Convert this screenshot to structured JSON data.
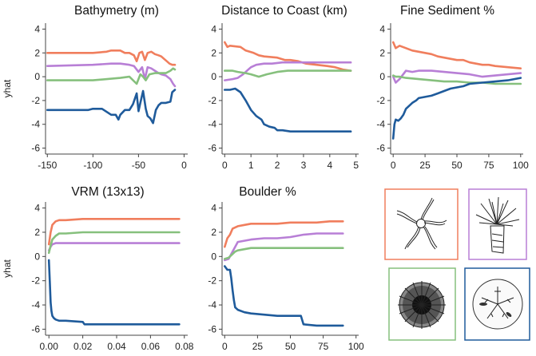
{
  "chart_data": [
    {
      "type": "line",
      "title": "Bathymetry (m)",
      "ylabel": "yhat",
      "xlim": [
        -152,
        4
      ],
      "ylim": [
        -6.5,
        4.5
      ],
      "xticks": [
        -150,
        -100,
        -50,
        0
      ],
      "yticks": [
        4,
        2,
        0,
        -2,
        -4,
        -6
      ],
      "series": [
        {
          "name": "brittle-star",
          "color": "#f07e5d",
          "x": [
            -150,
            -100,
            -85,
            -80,
            -70,
            -65,
            -60,
            -55,
            -52,
            -49,
            -46,
            -43,
            -40,
            -36,
            -32,
            -28,
            -25,
            -22,
            -19,
            -16,
            -13,
            -10
          ],
          "y": [
            2.0,
            2.0,
            2.1,
            2.2,
            2.2,
            2.0,
            2.0,
            1.8,
            1.3,
            2.0,
            2.1,
            1.4,
            2.0,
            2.1,
            1.9,
            1.8,
            1.7,
            1.5,
            1.3,
            1.1,
            1.0,
            1.0
          ]
        },
        {
          "name": "sea-anemone",
          "color": "#b87fd6",
          "x": [
            -150,
            -100,
            -80,
            -70,
            -60,
            -55,
            -50,
            -46,
            -43,
            -40,
            -36,
            -32,
            -28,
            -25,
            -20,
            -15,
            -12,
            -10
          ],
          "y": [
            0.9,
            1.0,
            1.1,
            1.1,
            1.0,
            0.9,
            0.4,
            0.8,
            -0.2,
            0.8,
            0.7,
            0.5,
            0.3,
            0.2,
            0.1,
            -0.2,
            -0.6,
            -0.8
          ]
        },
        {
          "name": "sea-urchin",
          "color": "#86c07d",
          "x": [
            -150,
            -100,
            -70,
            -60,
            -52,
            -48,
            -45,
            -42,
            -38,
            -32,
            -28,
            -20,
            -15,
            -12,
            -10
          ],
          "y": [
            -0.3,
            -0.3,
            -0.1,
            0.0,
            -0.6,
            0.2,
            0.0,
            -0.3,
            0.2,
            0.3,
            0.3,
            0.3,
            0.5,
            0.7,
            0.6
          ]
        },
        {
          "name": "sand-dollar",
          "color": "#1f5b9b",
          "x": [
            -150,
            -105,
            -100,
            -90,
            -80,
            -75,
            -72,
            -70,
            -65,
            -60,
            -56,
            -52,
            -50,
            -48,
            -45,
            -42,
            -40,
            -37,
            -34,
            -31,
            -28,
            -25,
            -20,
            -15,
            -13,
            -10
          ],
          "y": [
            -2.8,
            -2.8,
            -2.7,
            -2.7,
            -3.2,
            -3.2,
            -3.6,
            -3.2,
            -2.8,
            -2.8,
            -2.3,
            -1.4,
            -2.9,
            -2.2,
            -1.2,
            -2.7,
            -3.3,
            -3.5,
            -3.9,
            -2.8,
            -2.4,
            -2.2,
            -2.2,
            -2.1,
            -1.3,
            -1.1
          ]
        }
      ]
    },
    {
      "type": "line",
      "title": "Distance to Coast (km)",
      "ylabel": "",
      "xlim": [
        -0.1,
        5.1
      ],
      "ylim": [
        -6.5,
        4.5
      ],
      "xticks": [
        0,
        1,
        2,
        3,
        4,
        5
      ],
      "yticks": [
        4,
        2,
        0,
        -2,
        -4,
        -6
      ],
      "series": [
        {
          "name": "brittle-star",
          "color": "#f07e5d",
          "x": [
            0,
            0.1,
            0.2,
            0.6,
            0.8,
            1.1,
            1.3,
            1.5,
            2.0,
            2.3,
            2.5,
            2.8,
            3.1,
            3.5,
            3.9,
            4.2,
            4.5,
            4.8
          ],
          "y": [
            2.9,
            2.5,
            2.6,
            2.5,
            2.2,
            2.0,
            1.8,
            1.7,
            1.6,
            1.4,
            1.4,
            1.3,
            1.1,
            1.0,
            0.9,
            0.8,
            0.6,
            0.5
          ]
        },
        {
          "name": "sea-anemone",
          "color": "#b87fd6",
          "x": [
            0,
            0.3,
            0.5,
            0.7,
            0.9,
            1.0,
            1.2,
            1.5,
            1.8,
            2.2,
            3,
            4,
            4.8
          ],
          "y": [
            -0.3,
            -0.2,
            -0.1,
            0.2,
            0.6,
            0.8,
            1.0,
            1.1,
            1.1,
            1.2,
            1.2,
            1.2,
            1.2
          ]
        },
        {
          "name": "sea-urchin",
          "color": "#86c07d",
          "x": [
            0,
            0.3,
            0.5,
            0.8,
            1.0,
            1.3,
            1.6,
            2.0,
            2.4,
            3,
            4,
            4.8
          ],
          "y": [
            0.5,
            0.5,
            0.4,
            0.3,
            0.2,
            0.0,
            0.2,
            0.4,
            0.5,
            0.5,
            0.5,
            0.5
          ]
        },
        {
          "name": "sand-dollar",
          "color": "#1f5b9b",
          "x": [
            0,
            0.2,
            0.4,
            0.6,
            0.8,
            1.0,
            1.2,
            1.4,
            1.5,
            1.7,
            1.9,
            2.0,
            2.2,
            2.5,
            3,
            4,
            4.8
          ],
          "y": [
            -1.1,
            -1.1,
            -1.0,
            -1.3,
            -2.0,
            -2.8,
            -3.3,
            -3.6,
            -4.0,
            -4.2,
            -4.3,
            -4.5,
            -4.5,
            -4.6,
            -4.6,
            -4.6,
            -4.6
          ]
        }
      ]
    },
    {
      "type": "line",
      "title": "Fine Sediment %",
      "ylabel": "",
      "xlim": [
        -2,
        102
      ],
      "ylim": [
        -6.5,
        4.5
      ],
      "xticks": [
        0,
        25,
        50,
        75,
        100
      ],
      "yticks": [
        4,
        2,
        0,
        -2,
        -4,
        -6
      ],
      "series": [
        {
          "name": "brittle-star",
          "color": "#f07e5d",
          "x": [
            0,
            2,
            5,
            10,
            15,
            20,
            25,
            30,
            35,
            40,
            45,
            50,
            55,
            60,
            65,
            70,
            75,
            80,
            90,
            100
          ],
          "y": [
            2.9,
            2.4,
            2.6,
            2.4,
            2.2,
            2.1,
            2.0,
            1.9,
            1.7,
            1.6,
            1.5,
            1.4,
            1.4,
            1.2,
            1.1,
            1.0,
            1.0,
            0.9,
            0.8,
            0.7
          ]
        },
        {
          "name": "sea-anemone",
          "color": "#b87fd6",
          "x": [
            0,
            2,
            5,
            10,
            15,
            20,
            30,
            40,
            50,
            60,
            65,
            70,
            80,
            90,
            100
          ],
          "y": [
            0.0,
            -0.5,
            -0.2,
            0.5,
            0.4,
            0.5,
            0.5,
            0.4,
            0.3,
            0.2,
            0.1,
            0.0,
            0.1,
            0.2,
            0.3
          ]
        },
        {
          "name": "sea-urchin",
          "color": "#86c07d",
          "x": [
            0,
            2,
            5,
            10,
            20,
            30,
            40,
            50,
            60,
            70,
            80,
            90,
            100
          ],
          "y": [
            0.1,
            0.0,
            0.0,
            -0.1,
            -0.2,
            -0.3,
            -0.4,
            -0.4,
            -0.5,
            -0.5,
            -0.6,
            -0.6,
            -0.6
          ]
        },
        {
          "name": "sand-dollar",
          "color": "#1f5b9b",
          "x": [
            0,
            1,
            2,
            4,
            6,
            8,
            10,
            12,
            15,
            18,
            20,
            25,
            30,
            35,
            40,
            45,
            50,
            55,
            60,
            70,
            80,
            90,
            100
          ],
          "y": [
            -5.2,
            -4.0,
            -3.6,
            -3.7,
            -3.5,
            -3.2,
            -2.7,
            -2.5,
            -2.2,
            -2.0,
            -1.8,
            -1.7,
            -1.6,
            -1.4,
            -1.2,
            -1.0,
            -0.9,
            -0.8,
            -0.6,
            -0.5,
            -0.4,
            -0.3,
            -0.1
          ]
        }
      ]
    },
    {
      "type": "line",
      "title": "VRM (13x13)",
      "ylabel": "yhat",
      "xlim": [
        -0.002,
        0.082
      ],
      "ylim": [
        -6.5,
        4.5
      ],
      "xticks": [
        0.0,
        0.02,
        0.04,
        0.06,
        0.08
      ],
      "xtick_labels": [
        "0.00",
        "0.02",
        "0.04",
        "0.06",
        "0.08"
      ],
      "yticks": [
        4,
        2,
        0,
        -2,
        -4,
        -6
      ],
      "series": [
        {
          "name": "brittle-star",
          "color": "#f07e5d",
          "x": [
            0.0,
            0.001,
            0.002,
            0.004,
            0.006,
            0.01,
            0.02,
            0.04,
            0.06,
            0.077
          ],
          "y": [
            1.0,
            2.0,
            2.6,
            2.9,
            3.0,
            3.0,
            3.1,
            3.1,
            3.1,
            3.1
          ]
        },
        {
          "name": "sea-anemone",
          "color": "#b87fd6",
          "x": [
            0.0,
            0.001,
            0.002,
            0.004,
            0.01,
            0.02,
            0.04,
            0.06,
            0.077
          ],
          "y": [
            0.5,
            0.8,
            1.0,
            1.1,
            1.1,
            1.1,
            1.1,
            1.1,
            1.1
          ]
        },
        {
          "name": "sea-urchin",
          "color": "#86c07d",
          "x": [
            0.0,
            0.001,
            0.002,
            0.004,
            0.006,
            0.01,
            0.02,
            0.04,
            0.06,
            0.077
          ],
          "y": [
            0.3,
            0.9,
            1.4,
            1.7,
            1.9,
            1.9,
            2.0,
            2.0,
            2.0,
            2.0
          ]
        },
        {
          "name": "sand-dollar",
          "color": "#1f5b9b",
          "x": [
            0.0,
            0.0005,
            0.001,
            0.0015,
            0.002,
            0.003,
            0.004,
            0.006,
            0.01,
            0.02,
            0.021,
            0.04,
            0.06,
            0.077
          ],
          "y": [
            -0.3,
            -2.0,
            -3.8,
            -4.5,
            -4.9,
            -5.1,
            -5.2,
            -5.3,
            -5.3,
            -5.4,
            -5.6,
            -5.6,
            -5.6,
            -5.6
          ]
        }
      ]
    },
    {
      "type": "line",
      "title": "Boulder %",
      "ylabel": "",
      "xlim": [
        -2,
        102
      ],
      "ylim": [
        -6.5,
        4.5
      ],
      "xticks": [
        0,
        25,
        50,
        75,
        100
      ],
      "yticks": [
        4,
        2,
        0,
        -2,
        -4,
        -6
      ],
      "series": [
        {
          "name": "brittle-star",
          "color": "#f07e5d",
          "x": [
            0,
            2,
            4,
            6,
            8,
            10,
            15,
            20,
            30,
            40,
            50,
            60,
            70,
            80,
            90
          ],
          "y": [
            0.8,
            1.5,
            1.8,
            2.3,
            2.4,
            2.5,
            2.6,
            2.7,
            2.7,
            2.7,
            2.8,
            2.8,
            2.8,
            2.9,
            2.9
          ]
        },
        {
          "name": "sea-anemone",
          "color": "#b87fd6",
          "x": [
            0,
            3,
            5,
            8,
            10,
            15,
            20,
            30,
            40,
            50,
            60,
            70,
            80,
            90
          ],
          "y": [
            -0.3,
            -0.2,
            0.2,
            0.8,
            1.2,
            1.3,
            1.4,
            1.5,
            1.5,
            1.6,
            1.8,
            1.9,
            1.9,
            1.9
          ]
        },
        {
          "name": "sea-urchin",
          "color": "#86c07d",
          "x": [
            0,
            3,
            5,
            8,
            10,
            15,
            20,
            30,
            40,
            50,
            60,
            70,
            80,
            90
          ],
          "y": [
            -0.2,
            -0.1,
            0.1,
            0.4,
            0.5,
            0.6,
            0.7,
            0.7,
            0.7,
            0.7,
            0.7,
            0.7,
            0.7,
            0.7
          ]
        },
        {
          "name": "sand-dollar",
          "color": "#1f5b9b",
          "x": [
            0,
            2,
            4,
            5,
            6,
            7,
            8,
            10,
            15,
            20,
            30,
            40,
            50,
            58,
            60,
            70,
            80,
            90
          ],
          "y": [
            -0.8,
            -1.1,
            -1.1,
            -1.8,
            -2.8,
            -3.6,
            -4.2,
            -4.4,
            -4.6,
            -4.7,
            -4.8,
            -4.9,
            -4.9,
            -4.9,
            -5.6,
            -5.7,
            -5.7,
            -5.7
          ]
        }
      ]
    }
  ],
  "legend": {
    "placement": "bottom-right",
    "items": [
      {
        "name": "brittle-star",
        "color": "#f07e5d"
      },
      {
        "name": "sea-anemone",
        "color": "#b87fd6"
      },
      {
        "name": "sea-urchin",
        "color": "#86c07d"
      },
      {
        "name": "sand-dollar",
        "color": "#1f5b9b"
      }
    ]
  }
}
